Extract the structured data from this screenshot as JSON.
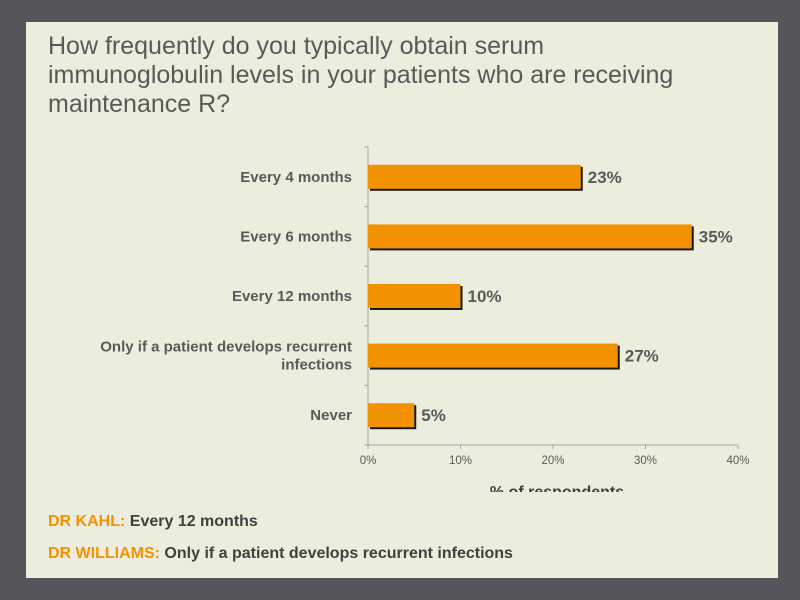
{
  "title": "How frequently do you typically obtain serum\nimmunoglobulin levels in your patients who are receiving\nmaintenance R?",
  "chart_data": {
    "type": "bar",
    "orientation": "horizontal",
    "categories": [
      "Every 4 months",
      "Every 6 months",
      "Every 12 months",
      "Only if a patient develops recurrent infections",
      "Never"
    ],
    "category_lines": [
      [
        "Every 4 months"
      ],
      [
        "Every 6 months"
      ],
      [
        "Every 12 months"
      ],
      [
        "Only if a patient develops recurrent",
        "infections"
      ],
      [
        "Never"
      ]
    ],
    "values": [
      23,
      35,
      10,
      27,
      5
    ],
    "value_labels": [
      "23%",
      "35%",
      "10%",
      "27%",
      "5%"
    ],
    "xlabel": "% of respondents",
    "xlim": [
      0,
      40
    ],
    "xticks": [
      0,
      10,
      20,
      30,
      40
    ],
    "xtick_labels": [
      "0%",
      "10%",
      "20%",
      "30%",
      "40%"
    ],
    "grid": false,
    "bar_color": "#f39200",
    "shadow_color": "#1a1a1a"
  },
  "answers": [
    {
      "who": "DR KAHL:",
      "text": " Every 12 months"
    },
    {
      "who": "DR WILLIAMS:",
      "text": " Only if a patient develops recurrent infections"
    }
  ],
  "colors": {
    "frame": "#55565b",
    "background": "#ededde",
    "accent": "#f39200",
    "text": "#595959"
  }
}
